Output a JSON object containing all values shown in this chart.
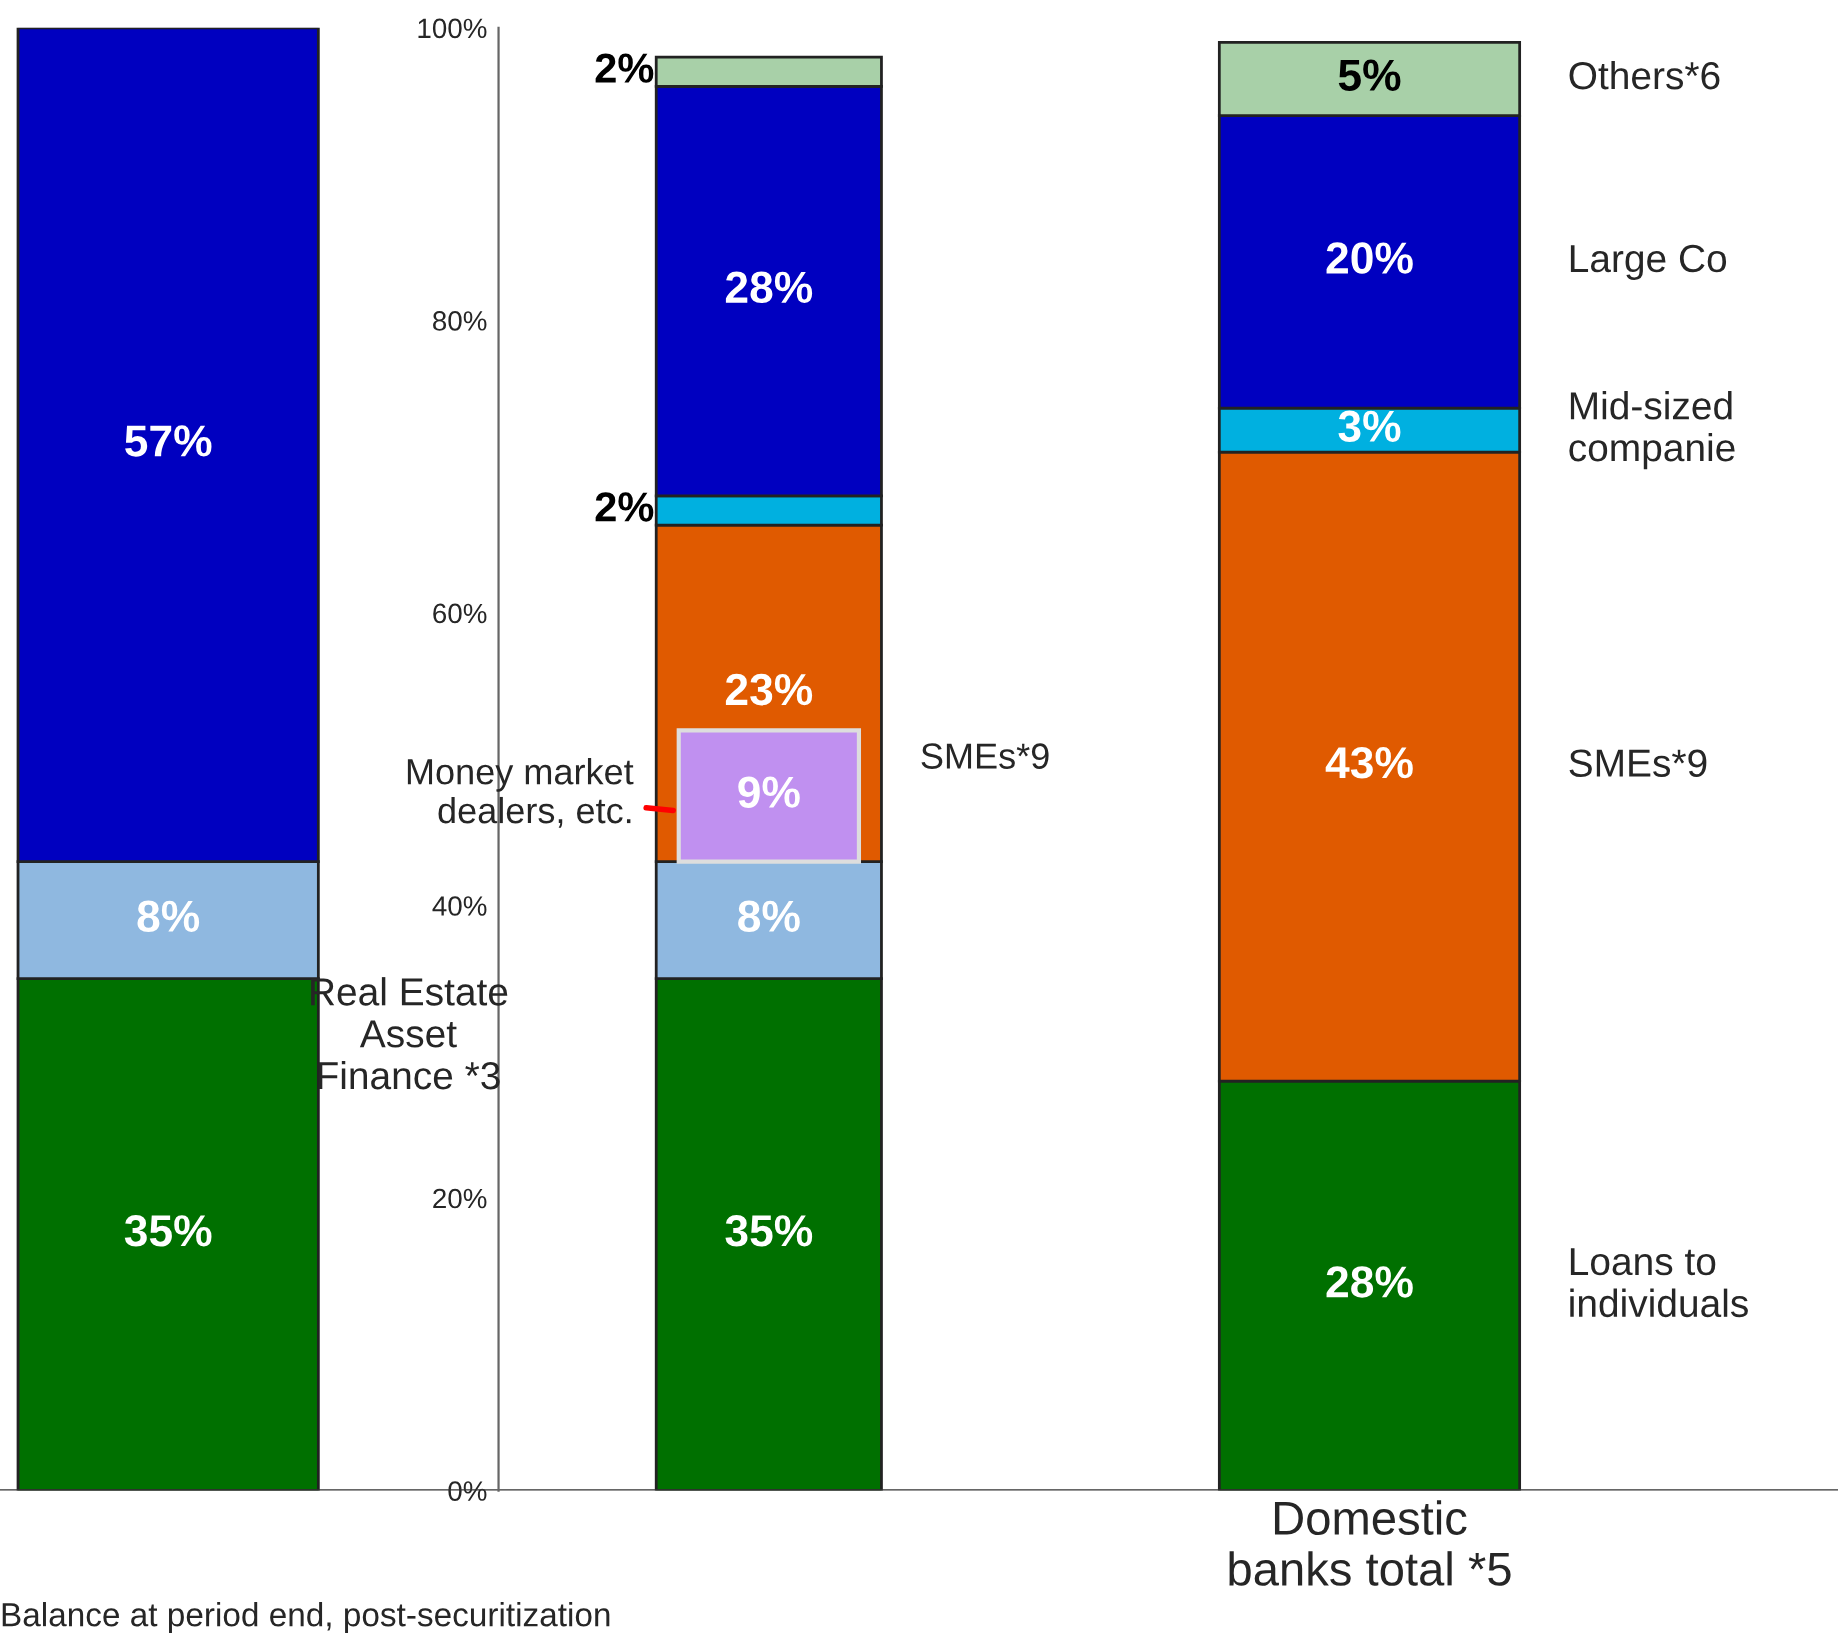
{
  "chart_data": {
    "type": "bar",
    "stacked": true,
    "categories": [
      null,
      null,
      "Domestic\nbanks total *5"
    ],
    "ylim": [
      0,
      100
    ],
    "yticks": [
      {
        "value": 0,
        "label": "0%"
      },
      {
        "value": 20,
        "label": "20%"
      },
      {
        "value": 40,
        "label": "40%"
      },
      {
        "value": 60,
        "label": "60%"
      },
      {
        "value": 80,
        "label": "80%"
      },
      {
        "value": 100,
        "label": "100%"
      }
    ],
    "grid": false,
    "series": [
      {
        "name": "Loans to\nindividuals",
        "color": "#007000",
        "values": [
          35,
          35,
          28
        ],
        "value_labels": [
          "35%",
          "35%",
          "28%"
        ]
      },
      {
        "name": "Real Estate\nAsset\nFinance *3",
        "color": "#8fb8e0",
        "values": [
          8,
          8,
          null
        ],
        "value_labels": [
          "8%",
          "8%",
          null
        ]
      },
      {
        "name": "SMEs*9",
        "color": "#e05a00",
        "values": [
          null,
          23,
          43
        ],
        "value_labels": [
          null,
          "23%",
          "43%"
        ]
      },
      {
        "name": "Mid-sized\ncompanie",
        "color": "#00b0e0",
        "values": [
          null,
          2,
          3
        ],
        "value_labels": [
          null,
          "2%",
          "3%"
        ]
      },
      {
        "name": "Large Co",
        "color": "#0000c0",
        "values": [
          57,
          28,
          20
        ],
        "value_labels": [
          "57%",
          "28%",
          "20%"
        ]
      },
      {
        "name": "Others*6",
        "color": "#a8d0a8",
        "values": [
          null,
          2,
          5
        ],
        "value_labels": [
          null,
          "2%",
          "5%"
        ]
      }
    ],
    "annotations": [
      "SMEs*9",
      "Balance at period end, post-securitization",
      "Money market\ndealers, etc.",
      "9%"
    ]
  }
}
